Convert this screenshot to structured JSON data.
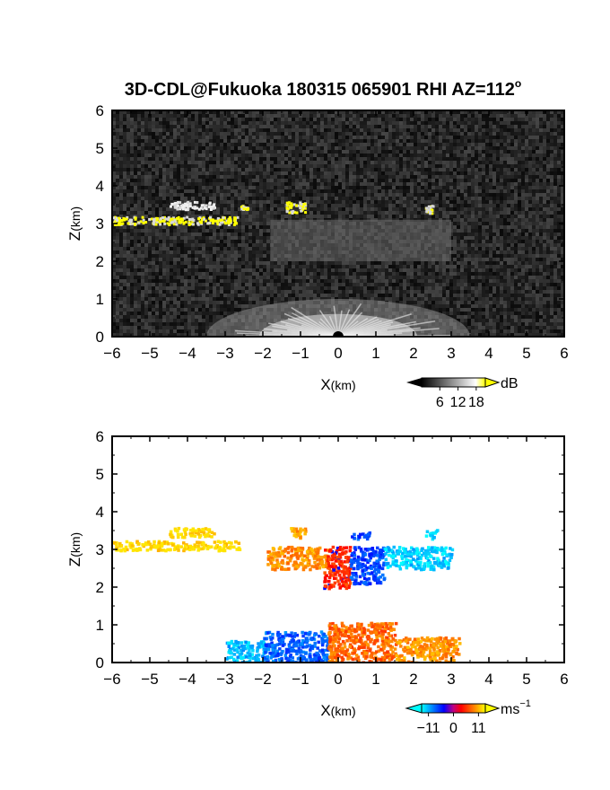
{
  "figure": {
    "title_main": "3D-CDL@Fukuoka 180315 065901 RHI AZ=112",
    "title_sup": "o"
  },
  "chart_data": [
    {
      "type": "heatmap",
      "panel": "top",
      "title": "3D-CDL@Fukuoka 180315 065901 RHI AZ=112o",
      "xlabel_main": "X",
      "xlabel_unit": "(km)",
      "ylabel_main": "Z",
      "ylabel_unit": "(km)",
      "xlim": [
        -6,
        6
      ],
      "ylim": [
        0,
        6
      ],
      "xticks": [
        -6,
        -5,
        -4,
        -3,
        -2,
        -1,
        0,
        1,
        2,
        3,
        4,
        5,
        6
      ],
      "yticks": [
        0,
        1,
        2,
        3,
        4,
        5,
        6
      ],
      "background": "#141414",
      "colorbar": {
        "unit": "dB",
        "ticks": [
          "6",
          "12",
          "18"
        ],
        "tick_values": [
          6,
          12,
          18
        ],
        "range": [
          0,
          21
        ],
        "colors": [
          "#000000",
          "#ffffff",
          "#ffff00"
        ]
      },
      "features": [
        {
          "kind": "cloud_layer",
          "x": [
            -6.0,
            -2.7
          ],
          "z": [
            3.0,
            3.2
          ],
          "color": "#ffff00"
        },
        {
          "kind": "cloud_patch",
          "x": [
            -4.5,
            -3.3
          ],
          "z": [
            3.4,
            3.6
          ],
          "color": "#f0f0f0"
        },
        {
          "kind": "cloud_patch",
          "x": [
            -1.4,
            -0.9
          ],
          "z": [
            3.3,
            3.6
          ],
          "color": "#ffff00"
        },
        {
          "kind": "cloud_patch",
          "x": [
            -2.6,
            -2.4
          ],
          "z": [
            3.4,
            3.5
          ],
          "color": "#ffff00"
        },
        {
          "kind": "cloud_patch",
          "x": [
            2.3,
            2.5
          ],
          "z": [
            3.3,
            3.5
          ],
          "color": "#ffff00"
        },
        {
          "kind": "diffuse_layer",
          "x": [
            -1.8,
            3.0
          ],
          "z": [
            2.0,
            3.1
          ],
          "color": "#6e6e6e"
        },
        {
          "kind": "near_range_fan",
          "x": [
            -3.5,
            3.5
          ],
          "z": [
            0.0,
            1.0
          ],
          "color": "#dcdcdc"
        }
      ]
    },
    {
      "type": "scatter",
      "panel": "bottom",
      "xlabel_main": "X",
      "xlabel_unit": "(km)",
      "ylabel_main": "Z",
      "ylabel_unit": "(km)",
      "xlim": [
        -6,
        6
      ],
      "ylim": [
        0,
        6
      ],
      "xticks": [
        -6,
        -5,
        -4,
        -3,
        -2,
        -1,
        0,
        1,
        2,
        3,
        4,
        5,
        6
      ],
      "yticks": [
        0,
        1,
        2,
        3,
        4,
        5,
        6
      ],
      "colorbar": {
        "unit_main": "ms",
        "unit_sup": "−1",
        "ticks": [
          "−11",
          "0",
          "11"
        ],
        "tick_values": [
          -11,
          0,
          11
        ],
        "range": [
          -14,
          14
        ],
        "colors": [
          "#00ffff",
          "#0000ff",
          "#ff0000",
          "#ffff00"
        ]
      },
      "regions": [
        {
          "x": [
            -6.0,
            -2.6
          ],
          "z": [
            3.0,
            3.25
          ],
          "velocity": 11
        },
        {
          "x": [
            -4.5,
            -3.3
          ],
          "z": [
            3.35,
            3.6
          ],
          "velocity": 11
        },
        {
          "x": [
            -1.9,
            -0.3
          ],
          "z": [
            2.5,
            3.1
          ],
          "velocity": 7
        },
        {
          "x": [
            -0.4,
            0.3
          ],
          "z": [
            2.0,
            3.1
          ],
          "velocity": 2
        },
        {
          "x": [
            0.3,
            1.2
          ],
          "z": [
            2.1,
            3.1
          ],
          "velocity": -3
        },
        {
          "x": [
            1.2,
            3.0
          ],
          "z": [
            2.5,
            3.1
          ],
          "velocity": -9
        },
        {
          "x": [
            -1.3,
            -0.9
          ],
          "z": [
            3.3,
            3.6
          ],
          "velocity": 8
        },
        {
          "x": [
            0.3,
            0.8
          ],
          "z": [
            3.3,
            3.5
          ],
          "velocity": -3
        },
        {
          "x": [
            2.3,
            2.6
          ],
          "z": [
            3.3,
            3.55
          ],
          "velocity": -10
        },
        {
          "x": [
            -3.0,
            -2.0
          ],
          "z": [
            0.0,
            0.6
          ],
          "velocity": -8
        },
        {
          "x": [
            -2.0,
            -0.3
          ],
          "z": [
            0.0,
            0.85
          ],
          "velocity": -4
        },
        {
          "x": [
            -0.3,
            1.5
          ],
          "z": [
            0.0,
            1.1
          ],
          "velocity": 5
        },
        {
          "x": [
            1.5,
            3.2
          ],
          "z": [
            0.0,
            0.7
          ],
          "velocity": 7
        }
      ]
    }
  ]
}
